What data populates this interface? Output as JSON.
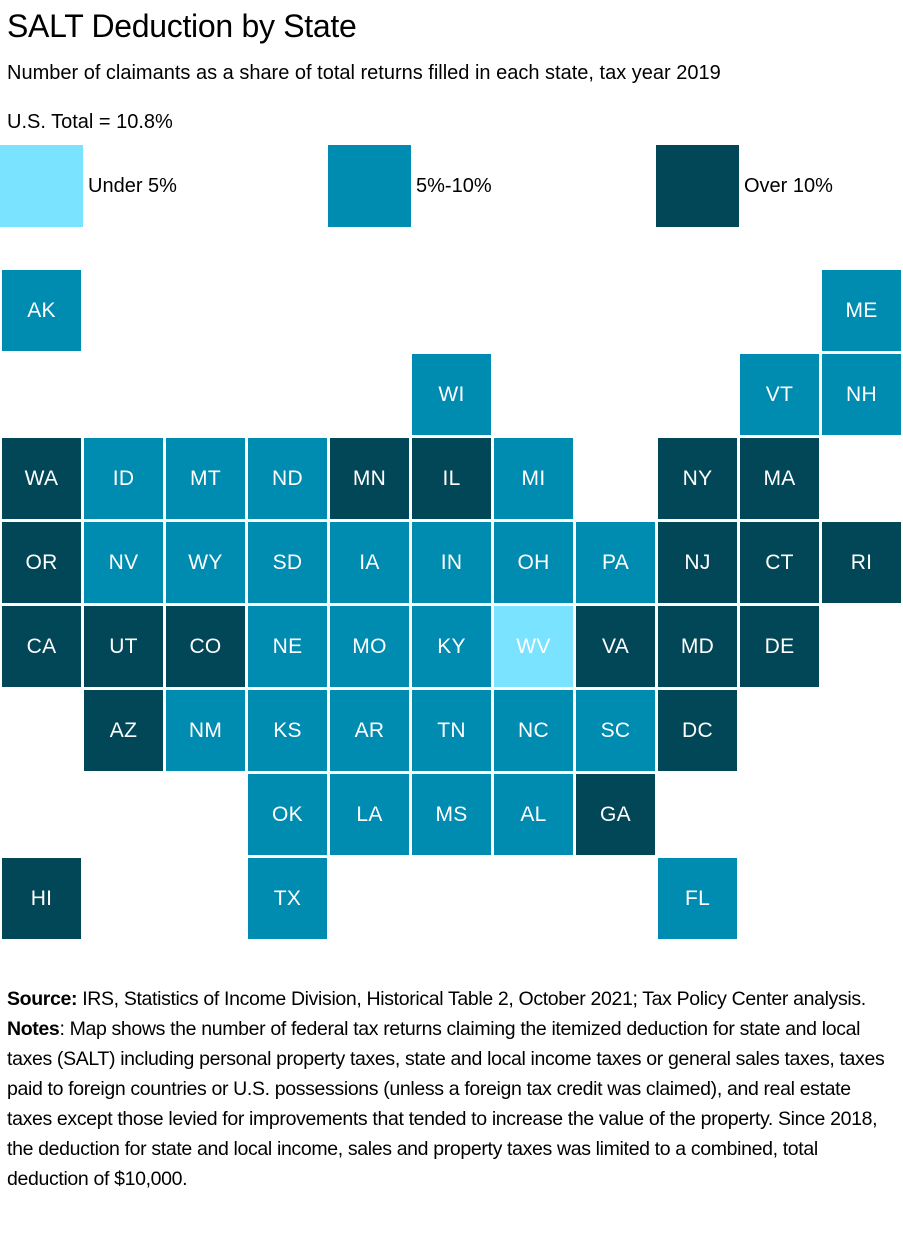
{
  "title": "SALT Deduction by State",
  "subtitle": "Number of claimants as a share of total returns filled in each state, tax year 2019",
  "us_total": "U.S. Total = 10.8%",
  "legend": [
    {
      "key": "under5",
      "label": "Under 5%",
      "color": "#7AE3FF"
    },
    {
      "key": "5to10",
      "label": "5%-10%",
      "color": "#008BB0"
    },
    {
      "key": "over10",
      "label": "Over 10%",
      "color": "#024757"
    }
  ],
  "tile_text_color": "#FFFFFF",
  "states": [
    {
      "abbr": "AK",
      "row": 0,
      "col": 0,
      "category": "5to10"
    },
    {
      "abbr": "ME",
      "row": 0,
      "col": 10,
      "category": "5to10"
    },
    {
      "abbr": "WI",
      "row": 1,
      "col": 5,
      "category": "5to10"
    },
    {
      "abbr": "VT",
      "row": 1,
      "col": 9,
      "category": "5to10"
    },
    {
      "abbr": "NH",
      "row": 1,
      "col": 10,
      "category": "5to10"
    },
    {
      "abbr": "WA",
      "row": 2,
      "col": 0,
      "category": "over10"
    },
    {
      "abbr": "ID",
      "row": 2,
      "col": 1,
      "category": "5to10"
    },
    {
      "abbr": "MT",
      "row": 2,
      "col": 2,
      "category": "5to10"
    },
    {
      "abbr": "ND",
      "row": 2,
      "col": 3,
      "category": "5to10"
    },
    {
      "abbr": "MN",
      "row": 2,
      "col": 4,
      "category": "over10"
    },
    {
      "abbr": "IL",
      "row": 2,
      "col": 5,
      "category": "over10"
    },
    {
      "abbr": "MI",
      "row": 2,
      "col": 6,
      "category": "5to10"
    },
    {
      "abbr": "NY",
      "row": 2,
      "col": 8,
      "category": "over10"
    },
    {
      "abbr": "MA",
      "row": 2,
      "col": 9,
      "category": "over10"
    },
    {
      "abbr": "OR",
      "row": 3,
      "col": 0,
      "category": "over10"
    },
    {
      "abbr": "NV",
      "row": 3,
      "col": 1,
      "category": "5to10"
    },
    {
      "abbr": "WY",
      "row": 3,
      "col": 2,
      "category": "5to10"
    },
    {
      "abbr": "SD",
      "row": 3,
      "col": 3,
      "category": "5to10"
    },
    {
      "abbr": "IA",
      "row": 3,
      "col": 4,
      "category": "5to10"
    },
    {
      "abbr": "IN",
      "row": 3,
      "col": 5,
      "category": "5to10"
    },
    {
      "abbr": "OH",
      "row": 3,
      "col": 6,
      "category": "5to10"
    },
    {
      "abbr": "PA",
      "row": 3,
      "col": 7,
      "category": "5to10"
    },
    {
      "abbr": "NJ",
      "row": 3,
      "col": 8,
      "category": "over10"
    },
    {
      "abbr": "CT",
      "row": 3,
      "col": 9,
      "category": "over10"
    },
    {
      "abbr": "RI",
      "row": 3,
      "col": 10,
      "category": "over10"
    },
    {
      "abbr": "CA",
      "row": 4,
      "col": 0,
      "category": "over10"
    },
    {
      "abbr": "UT",
      "row": 4,
      "col": 1,
      "category": "over10"
    },
    {
      "abbr": "CO",
      "row": 4,
      "col": 2,
      "category": "over10"
    },
    {
      "abbr": "NE",
      "row": 4,
      "col": 3,
      "category": "5to10"
    },
    {
      "abbr": "MO",
      "row": 4,
      "col": 4,
      "category": "5to10"
    },
    {
      "abbr": "KY",
      "row": 4,
      "col": 5,
      "category": "5to10"
    },
    {
      "abbr": "WV",
      "row": 4,
      "col": 6,
      "category": "under5"
    },
    {
      "abbr": "VA",
      "row": 4,
      "col": 7,
      "category": "over10"
    },
    {
      "abbr": "MD",
      "row": 4,
      "col": 8,
      "category": "over10"
    },
    {
      "abbr": "DE",
      "row": 4,
      "col": 9,
      "category": "over10"
    },
    {
      "abbr": "AZ",
      "row": 5,
      "col": 1,
      "category": "over10"
    },
    {
      "abbr": "NM",
      "row": 5,
      "col": 2,
      "category": "5to10"
    },
    {
      "abbr": "KS",
      "row": 5,
      "col": 3,
      "category": "5to10"
    },
    {
      "abbr": "AR",
      "row": 5,
      "col": 4,
      "category": "5to10"
    },
    {
      "abbr": "TN",
      "row": 5,
      "col": 5,
      "category": "5to10"
    },
    {
      "abbr": "NC",
      "row": 5,
      "col": 6,
      "category": "5to10"
    },
    {
      "abbr": "SC",
      "row": 5,
      "col": 7,
      "category": "5to10"
    },
    {
      "abbr": "DC",
      "row": 5,
      "col": 8,
      "category": "over10"
    },
    {
      "abbr": "OK",
      "row": 6,
      "col": 3,
      "category": "5to10"
    },
    {
      "abbr": "LA",
      "row": 6,
      "col": 4,
      "category": "5to10"
    },
    {
      "abbr": "MS",
      "row": 6,
      "col": 5,
      "category": "5to10"
    },
    {
      "abbr": "AL",
      "row": 6,
      "col": 6,
      "category": "5to10"
    },
    {
      "abbr": "GA",
      "row": 6,
      "col": 7,
      "category": "over10"
    },
    {
      "abbr": "HI",
      "row": 7,
      "col": 0,
      "category": "over10"
    },
    {
      "abbr": "TX",
      "row": 7,
      "col": 3,
      "category": "5to10"
    },
    {
      "abbr": "FL",
      "row": 7,
      "col": 8,
      "category": "5to10"
    }
  ],
  "footer": {
    "source_label": "Source:",
    "source_text": " IRS, Statistics of Income Division, Historical Table 2, October 2021; Tax Policy Center analysis.",
    "notes_label": "Notes",
    "notes_text": ": Map shows the number of federal tax returns claiming the itemized deduction for state and local taxes (SALT) including personal property taxes, state and local income taxes or general sales taxes, taxes paid to foreign countries or U.S. possessions (unless a foreign tax credit was claimed), and real estate taxes except  those levied for improvements that tended to increase the value of the property. Since 2018, the deduction for state and local income, sales and property taxes was limited to a combined, total deduction of $10,000."
  }
}
